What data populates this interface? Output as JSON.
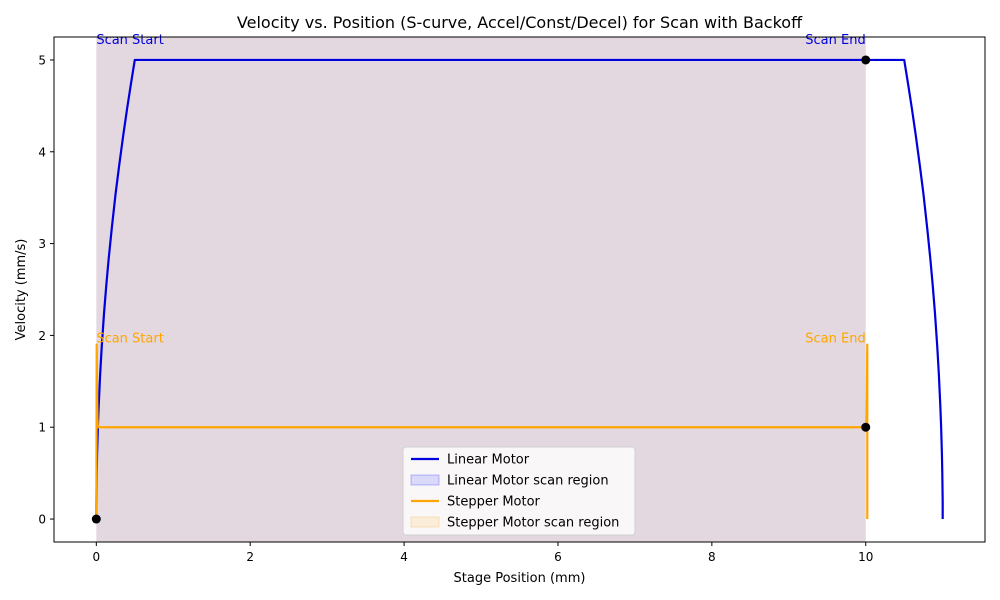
{
  "chart_data": {
    "type": "line",
    "title": "Velocity vs. Position (S-curve, Accel/Const/Decel) for Scan with Backoff",
    "xlabel": "Stage Position (mm)",
    "ylabel": "Velocity (mm/s)",
    "xlim": [
      -0.55,
      11.55
    ],
    "ylim": [
      -0.25,
      5.25
    ],
    "xticks": [
      0,
      2,
      4,
      6,
      8,
      10
    ],
    "yticks": [
      0,
      1,
      2,
      3,
      4,
      5
    ],
    "grid": false,
    "legend_position": "lower-center",
    "series": [
      {
        "name": "Linear Motor",
        "color": "#0000dd",
        "x": [
          0,
          0.005,
          0.01,
          0.02,
          0.03,
          0.05,
          0.07,
          0.1,
          0.13,
          0.16,
          0.2,
          0.25,
          0.3,
          0.35,
          0.4,
          0.45,
          0.5,
          1,
          2,
          3,
          4,
          5,
          6,
          7,
          8,
          9,
          10,
          10.5,
          10.55,
          10.6,
          10.65,
          10.7,
          10.75,
          10.8,
          10.84,
          10.87,
          10.9,
          10.93,
          10.95,
          10.97,
          10.98,
          10.99,
          10.995,
          11.0,
          11.0
        ],
        "y": [
          0,
          0.5,
          0.71,
          1.0,
          1.22,
          1.58,
          1.87,
          2.24,
          2.55,
          2.83,
          3.16,
          3.54,
          3.87,
          4.18,
          4.47,
          4.74,
          5.0,
          5.0,
          5.0,
          5.0,
          5.0,
          5.0,
          5.0,
          5.0,
          5.0,
          5.0,
          5.0,
          5.0,
          4.74,
          4.47,
          4.18,
          3.87,
          3.54,
          3.16,
          2.83,
          2.55,
          2.24,
          1.87,
          1.58,
          1.22,
          1.0,
          0.71,
          0.5,
          0.2,
          0
        ]
      },
      {
        "name": "Stepper Motor",
        "color": "#ffa500",
        "x": [
          0,
          0.005,
          0.01,
          0.015,
          0.02,
          1,
          2,
          3,
          4,
          5,
          6,
          7,
          8,
          9,
          10,
          10.005,
          10.01,
          10.015,
          10.02,
          10.02
        ],
        "y": [
          0,
          1.9,
          1.4,
          1.1,
          1.0,
          1.0,
          1.0,
          1.0,
          1.0,
          1.0,
          1.0,
          1.0,
          1.0,
          1.0,
          1.0,
          1.0,
          1.1,
          1.4,
          1.9,
          0
        ]
      }
    ],
    "regions": [
      {
        "name": "Linear Motor scan region",
        "x0": 0,
        "x1": 10,
        "color": "#0000ff",
        "alpha": 0.12
      },
      {
        "name": "Stepper Motor scan region",
        "x0": 0,
        "x1": 10,
        "color": "#ffa500",
        "alpha": 0.12
      }
    ],
    "markers": [
      {
        "x": 0,
        "y": 0
      },
      {
        "x": 10,
        "y": 5
      },
      {
        "x": 10,
        "y": 1
      }
    ],
    "annotations": [
      {
        "text": "Scan Start",
        "x": 0,
        "y": 5.25,
        "anchor": "start",
        "color": "#0000dd"
      },
      {
        "text": "Scan End",
        "x": 10,
        "y": 5.25,
        "anchor": "end",
        "color": "#0000dd"
      },
      {
        "text": "Scan Start",
        "x": 0,
        "y": 2.0,
        "anchor": "start",
        "color": "#ffa500"
      },
      {
        "text": "Scan End",
        "x": 10,
        "y": 2.0,
        "anchor": "end",
        "color": "#ffa500"
      }
    ]
  }
}
